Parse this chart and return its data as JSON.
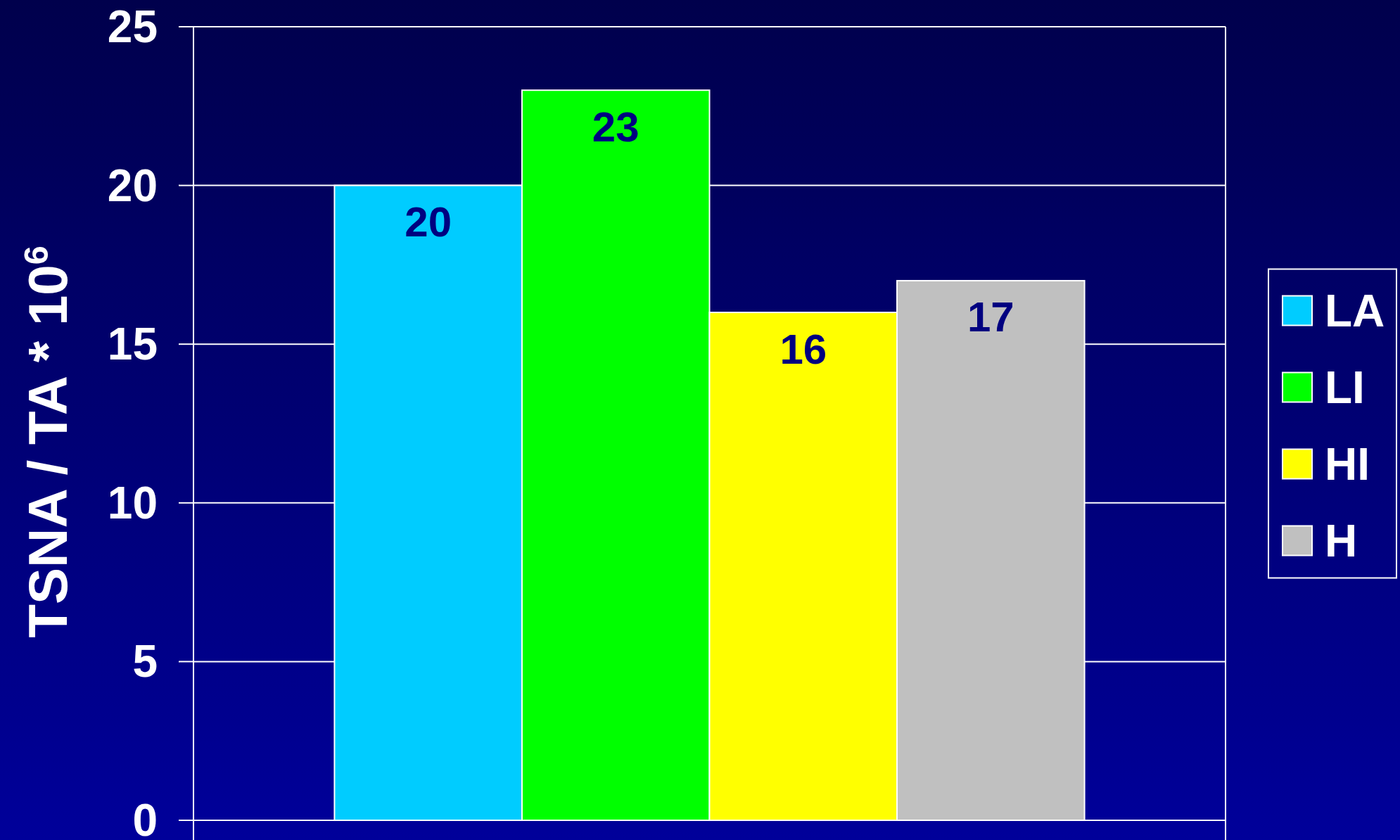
{
  "chart_data": {
    "type": "bar",
    "ylabel": "TSNA / TA * 10$^{6}$",
    "categories": [
      null
    ],
    "series": [
      {
        "name": "LA",
        "color": "#00ccff",
        "values": [
          20
        ]
      },
      {
        "name": "LI",
        "color": "#00ff00",
        "values": [
          23
        ]
      },
      {
        "name": "HI",
        "color": "#ffff00",
        "values": [
          16
        ]
      },
      {
        "name": "H",
        "color": "#c0c0c0",
        "values": [
          17
        ]
      }
    ],
    "ylim": [
      0,
      25
    ],
    "yticks": [
      0,
      5,
      10,
      15,
      20,
      25
    ],
    "grid": "y",
    "legend": "right",
    "data_labels": true,
    "tick_labels": "y"
  }
}
